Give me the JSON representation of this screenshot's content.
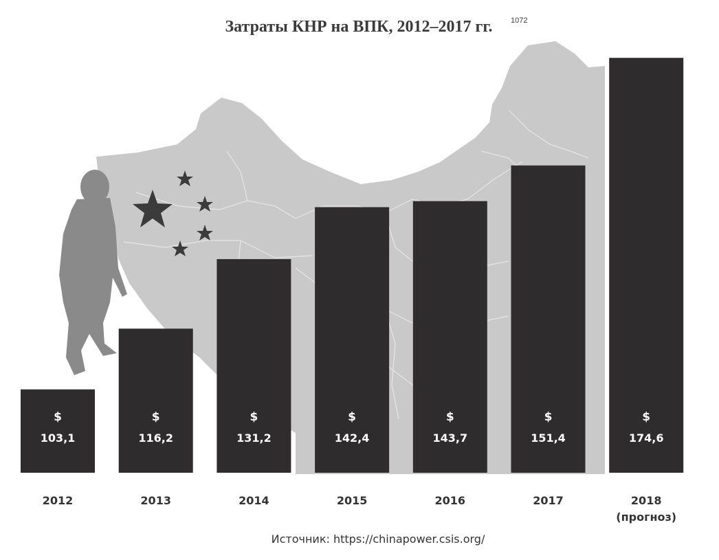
{
  "chart_data": {
    "type": "bar",
    "title": "Затраты КНР на ВПК, 2012–2017 гг.",
    "title_superscript": "1072",
    "categories": [
      "2012",
      "2013",
      "2014",
      "2015",
      "2016",
      "2017",
      "2018"
    ],
    "category_notes": [
      "",
      "",
      "",
      "",
      "",
      "",
      "(прогноз)"
    ],
    "values": [
      103.1,
      116.2,
      131.2,
      142.4,
      143.7,
      151.4,
      174.6
    ],
    "value_labels": [
      "103,1",
      "116,2",
      "131,2",
      "142,4",
      "143,7",
      "151,4",
      "174,6"
    ],
    "currency_label": "$",
    "source": "Источник: https://chinapower.csis.org/",
    "grid": false,
    "legend": "none",
    "colors": {
      "bar": "#2e2c2c",
      "bar_text": "#ffffff",
      "background_map": "#c9c9c9"
    },
    "icons": [
      "china-map-icon",
      "star-icon",
      "soldier-silhouette-icon"
    ]
  }
}
